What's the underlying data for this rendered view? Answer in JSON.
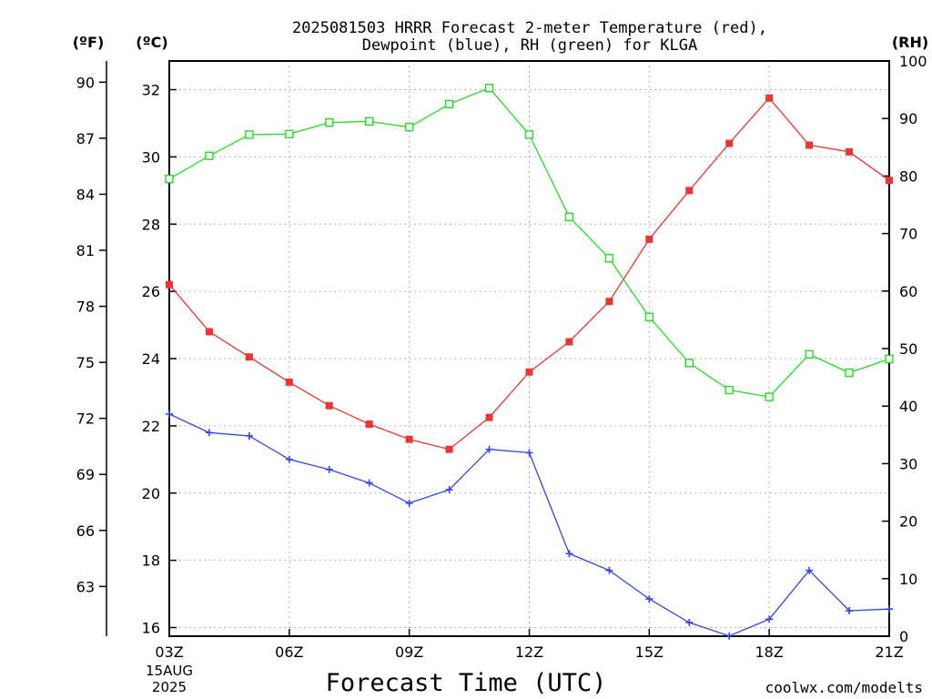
{
  "chart_data": {
    "type": "line",
    "title_line1": "2025081503 HRRR Forecast 2-meter Temperature (red),",
    "title_line2": "Dewpoint (blue), RH (green) for KLGA",
    "xlabel": "Forecast Time (UTC)",
    "credit": "coolwx.com/modelts",
    "unit_f": "(ºF)",
    "unit_c": "(ºC)",
    "unit_rh": "(RH)",
    "x_date_line1": "15AUG",
    "x_date_line2": "2025",
    "x_hours": [
      3,
      4,
      5,
      6,
      7,
      8,
      9,
      10,
      11,
      12,
      13,
      14,
      15,
      16,
      17,
      18,
      19,
      20,
      21
    ],
    "x_ticks": [
      {
        "hour": 3,
        "label": "03Z"
      },
      {
        "hour": 6,
        "label": "06Z"
      },
      {
        "hour": 9,
        "label": "09Z"
      },
      {
        "hour": 12,
        "label": "12Z"
      },
      {
        "hour": 15,
        "label": "15Z"
      },
      {
        "hour": 18,
        "label": "18Z"
      },
      {
        "hour": 21,
        "label": "21Z"
      }
    ],
    "xlim": [
      3,
      21
    ],
    "ylim_c": [
      16,
      32.6
    ],
    "ylim_rh": [
      0,
      100
    ],
    "y_ticks_c": [
      "16",
      "18",
      "20",
      "22",
      "24",
      "26",
      "28",
      "30",
      "32"
    ],
    "y_ticks_f": [
      "63",
      "66",
      "69",
      "72",
      "75",
      "78",
      "81",
      "84",
      "87",
      "90"
    ],
    "y_ticks_rh": [
      "0",
      "10",
      "20",
      "30",
      "40",
      "50",
      "60",
      "70",
      "80",
      "90",
      "100"
    ],
    "grid": true,
    "colors": {
      "temperature": "#ee3333",
      "dewpoint": "#3344ee",
      "rh": "#22dd22",
      "credit": "#dd3333"
    },
    "series": [
      {
        "key": "temperature",
        "unit": "C",
        "values": [
          26.2,
          24.8,
          24.05,
          23.3,
          22.6,
          22.05,
          21.6,
          21.3,
          22.25,
          23.6,
          24.5,
          25.7,
          27.55,
          29.0,
          30.4,
          31.75,
          30.35,
          30.15,
          29.3
        ]
      },
      {
        "key": "dewpoint",
        "unit": "C",
        "values": [
          22.35,
          21.8,
          21.7,
          21.0,
          20.7,
          20.3,
          19.7,
          20.1,
          21.3,
          21.2,
          18.2,
          17.7,
          16.85,
          16.15,
          15.75,
          16.25,
          17.7,
          16.5,
          16.55
        ]
      },
      {
        "key": "rh",
        "unit": "%",
        "values": [
          79.5,
          83.5,
          87.2,
          87.3,
          89.3,
          89.5,
          88.5,
          92.5,
          95.3,
          87.2,
          72.9,
          65.7,
          55.5,
          47.5,
          42.8,
          41.6,
          49.0,
          45.8,
          48.2
        ]
      }
    ]
  }
}
